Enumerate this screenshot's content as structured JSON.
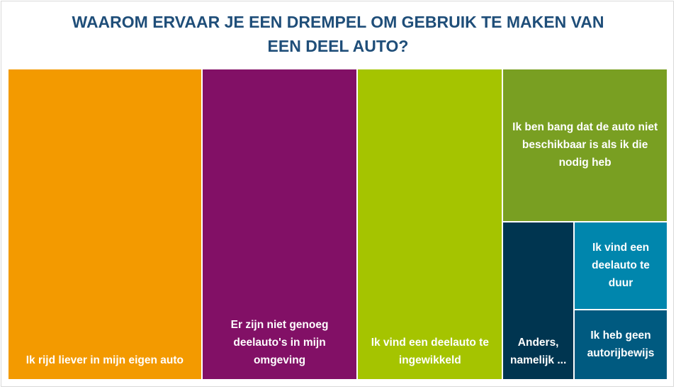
{
  "chart_data": {
    "type": "treemap",
    "title_lines": [
      "WAAROM ERVAAR JE EEN DREMPEL OM GEBRUIK TE MAKEN VAN",
      "EEN DEEL AUTO?"
    ],
    "items": [
      {
        "label": "Ik rijd liever in mijn eigen auto",
        "value": 29.4,
        "color": "#f39a00"
      },
      {
        "label": "Er zijn niet genoeg deelauto's in mijn omgeving",
        "value": 23.6,
        "color": "#821066"
      },
      {
        "label": "Ik vind een deelauto te ingewikkeld",
        "value": 22.0,
        "color": "#a5c400"
      },
      {
        "label": "Ik ben bang dat de auto niet beschikbaar is als ik die nodig heb",
        "value": 12.3,
        "color": "#799f22"
      },
      {
        "label": "Anders, namelijk ...",
        "value": 5.5,
        "color": "#003550"
      },
      {
        "label": "Ik vind een deelauto te duur",
        "value": 4.0,
        "color": "#0086ad"
      },
      {
        "label": "Ik heb geen autorijbewijs",
        "value": 3.2,
        "color": "#005a80"
      }
    ]
  }
}
